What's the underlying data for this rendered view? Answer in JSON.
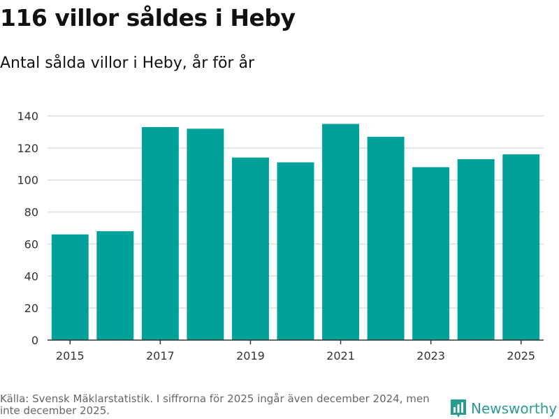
{
  "title": "116 villor såldes i Heby",
  "subtitle": "Antal sålda villor i Heby, år för år",
  "source": "Källa: Svensk Mäklarstatistik. I siffrorna för 2025 ingår även december 2024, men inte december 2025.",
  "brand": {
    "name": "Newsworthy",
    "color": "#2a9d8f"
  },
  "colors": {
    "bar": "#00a199",
    "grid": "#dddddd",
    "axis": "#333333",
    "tick_text": "#333333"
  },
  "chart_data": {
    "type": "bar",
    "title": "Antal sålda villor i Heby, år för år",
    "xlabel": "",
    "ylabel": "",
    "categories": [
      "2015",
      "2016",
      "2017",
      "2018",
      "2019",
      "2020",
      "2021",
      "2022",
      "2023",
      "2024",
      "2025"
    ],
    "values": [
      66,
      68,
      133,
      132,
      114,
      111,
      135,
      127,
      108,
      113,
      116
    ],
    "ylim": [
      0,
      140
    ],
    "yticks": [
      0,
      20,
      40,
      60,
      80,
      100,
      120,
      140
    ],
    "xtick_labels": [
      "2015",
      "2017",
      "2019",
      "2021",
      "2023",
      "2025"
    ],
    "grid": true
  }
}
